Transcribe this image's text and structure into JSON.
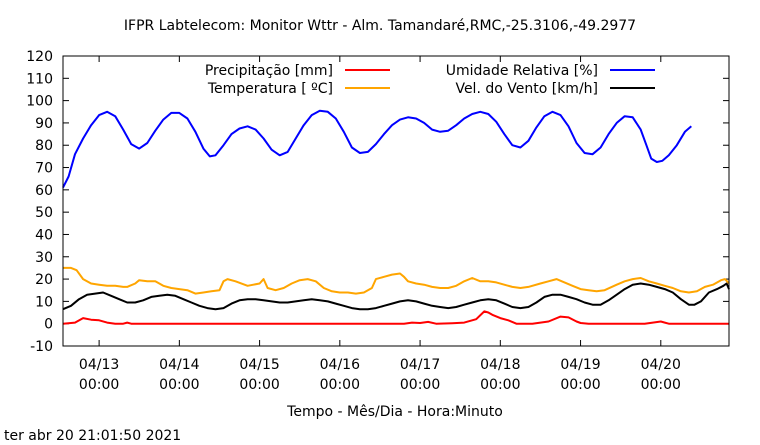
{
  "chart_data": {
    "type": "line",
    "title": "IFPR Labtelecom: Monitor Wttr - Alm. Tamandaré,RMC,-25.3106,-49.2977",
    "xlabel": "Tempo - Mês/Dia - Hora:Minuto",
    "ylabel": "",
    "ylim": [
      -10,
      120
    ],
    "yticks": [
      -10,
      0,
      10,
      20,
      30,
      40,
      50,
      60,
      70,
      80,
      90,
      100,
      110,
      120
    ],
    "xrange_days": [
      12.55,
      20.85
    ],
    "xticks": [
      {
        "day": 13,
        "date": "04/13",
        "time": "00:00"
      },
      {
        "day": 14,
        "date": "04/14",
        "time": "00:00"
      },
      {
        "day": 15,
        "date": "04/15",
        "time": "00:00"
      },
      {
        "day": 16,
        "date": "04/16",
        "time": "00:00"
      },
      {
        "day": 17,
        "date": "04/17",
        "time": "00:00"
      },
      {
        "day": 18,
        "date": "04/18",
        "time": "00:00"
      },
      {
        "day": 19,
        "date": "04/19",
        "time": "00:00"
      },
      {
        "day": 20,
        "date": "04/20",
        "time": "00:00"
      }
    ],
    "grid": false,
    "legend_placement": "top",
    "series": [
      {
        "name": "Precipitação [mm]",
        "color": "#ff0000",
        "points": [
          [
            12.55,
            0
          ],
          [
            12.7,
            0.5
          ],
          [
            12.8,
            2.5
          ],
          [
            12.9,
            1.8
          ],
          [
            13.0,
            1.5
          ],
          [
            13.1,
            0.5
          ],
          [
            13.2,
            0
          ],
          [
            13.3,
            0
          ],
          [
            13.35,
            0.5
          ],
          [
            13.4,
            0
          ],
          [
            14.0,
            0
          ],
          [
            15.0,
            0
          ],
          [
            16.0,
            0
          ],
          [
            16.8,
            0
          ],
          [
            16.9,
            0.5
          ],
          [
            17.0,
            0.3
          ],
          [
            17.1,
            0.8
          ],
          [
            17.2,
            0
          ],
          [
            17.4,
            0.2
          ],
          [
            17.55,
            0.5
          ],
          [
            17.7,
            2
          ],
          [
            17.8,
            5.5
          ],
          [
            17.85,
            5
          ],
          [
            17.9,
            4
          ],
          [
            18.0,
            2.5
          ],
          [
            18.1,
            1.5
          ],
          [
            18.2,
            0
          ],
          [
            18.4,
            0
          ],
          [
            18.5,
            0.5
          ],
          [
            18.6,
            1
          ],
          [
            18.75,
            3.2
          ],
          [
            18.85,
            2.8
          ],
          [
            18.95,
            1
          ],
          [
            19.0,
            0.3
          ],
          [
            19.1,
            0
          ],
          [
            19.8,
            0
          ],
          [
            19.9,
            0.5
          ],
          [
            20.0,
            1
          ],
          [
            20.05,
            0.5
          ],
          [
            20.1,
            0
          ],
          [
            20.85,
            0
          ]
        ]
      },
      {
        "name": "Temperatura [ ºC]",
        "color": "#ffa500",
        "points": [
          [
            12.55,
            25
          ],
          [
            12.65,
            25
          ],
          [
            12.72,
            24
          ],
          [
            12.8,
            20
          ],
          [
            12.9,
            18
          ],
          [
            13.0,
            17.5
          ],
          [
            13.1,
            17
          ],
          [
            13.2,
            17
          ],
          [
            13.3,
            16.5
          ],
          [
            13.35,
            16.5
          ],
          [
            13.45,
            18
          ],
          [
            13.5,
            19.5
          ],
          [
            13.6,
            19
          ],
          [
            13.7,
            19
          ],
          [
            13.8,
            17
          ],
          [
            13.9,
            16
          ],
          [
            14.0,
            15.5
          ],
          [
            14.1,
            15
          ],
          [
            14.2,
            13.5
          ],
          [
            14.3,
            14
          ],
          [
            14.4,
            14.5
          ],
          [
            14.5,
            15
          ],
          [
            14.55,
            19
          ],
          [
            14.6,
            20
          ],
          [
            14.7,
            19
          ],
          [
            14.85,
            17
          ],
          [
            15.0,
            18
          ],
          [
            15.05,
            20
          ],
          [
            15.1,
            16
          ],
          [
            15.2,
            15
          ],
          [
            15.3,
            16
          ],
          [
            15.4,
            18
          ],
          [
            15.5,
            19.5
          ],
          [
            15.6,
            20
          ],
          [
            15.7,
            19
          ],
          [
            15.8,
            16
          ],
          [
            15.9,
            14.5
          ],
          [
            16.0,
            14
          ],
          [
            16.1,
            14
          ],
          [
            16.2,
            13.5
          ],
          [
            16.3,
            14
          ],
          [
            16.4,
            16
          ],
          [
            16.45,
            20
          ],
          [
            16.55,
            21
          ],
          [
            16.65,
            22
          ],
          [
            16.75,
            22.5
          ],
          [
            16.8,
            21
          ],
          [
            16.85,
            19
          ],
          [
            16.95,
            18
          ],
          [
            17.05,
            17.5
          ],
          [
            17.15,
            16.5
          ],
          [
            17.25,
            16
          ],
          [
            17.35,
            16
          ],
          [
            17.45,
            17
          ],
          [
            17.55,
            19
          ],
          [
            17.65,
            20.5
          ],
          [
            17.75,
            19
          ],
          [
            17.85,
            19
          ],
          [
            17.95,
            18.5
          ],
          [
            18.05,
            17.5
          ],
          [
            18.15,
            16.5
          ],
          [
            18.25,
            16
          ],
          [
            18.35,
            16.5
          ],
          [
            18.5,
            18
          ],
          [
            18.6,
            19
          ],
          [
            18.7,
            20
          ],
          [
            18.8,
            18.5
          ],
          [
            18.9,
            17
          ],
          [
            19.0,
            15.5
          ],
          [
            19.1,
            15
          ],
          [
            19.2,
            14.5
          ],
          [
            19.3,
            15
          ],
          [
            19.45,
            17.5
          ],
          [
            19.55,
            19
          ],
          [
            19.65,
            20
          ],
          [
            19.75,
            20.5
          ],
          [
            19.85,
            19
          ],
          [
            19.95,
            18
          ],
          [
            20.05,
            17
          ],
          [
            20.15,
            16
          ],
          [
            20.25,
            14.5
          ],
          [
            20.35,
            14
          ],
          [
            20.45,
            14.5
          ],
          [
            20.55,
            16.5
          ],
          [
            20.65,
            17.5
          ],
          [
            20.75,
            19.5
          ],
          [
            20.8,
            20
          ],
          [
            20.85,
            18
          ]
        ]
      },
      {
        "name": "Umidade Relativa [%]",
        "color": "#0000ff",
        "points": [
          [
            12.55,
            61
          ],
          [
            12.62,
            66
          ],
          [
            12.7,
            76
          ],
          [
            12.8,
            83
          ],
          [
            12.9,
            89
          ],
          [
            13.0,
            93.5
          ],
          [
            13.1,
            95
          ],
          [
            13.2,
            93
          ],
          [
            13.3,
            87
          ],
          [
            13.4,
            80.5
          ],
          [
            13.5,
            78.5
          ],
          [
            13.6,
            81
          ],
          [
            13.7,
            86.5
          ],
          [
            13.8,
            91.5
          ],
          [
            13.9,
            94.5
          ],
          [
            14.0,
            94.5
          ],
          [
            14.1,
            92
          ],
          [
            14.2,
            86
          ],
          [
            14.3,
            78.5
          ],
          [
            14.38,
            75
          ],
          [
            14.45,
            75.5
          ],
          [
            14.55,
            80
          ],
          [
            14.65,
            85
          ],
          [
            14.75,
            87.5
          ],
          [
            14.85,
            88.5
          ],
          [
            14.95,
            87
          ],
          [
            15.05,
            83
          ],
          [
            15.15,
            78
          ],
          [
            15.25,
            75.5
          ],
          [
            15.35,
            77
          ],
          [
            15.45,
            83
          ],
          [
            15.55,
            89
          ],
          [
            15.65,
            93.5
          ],
          [
            15.75,
            95.5
          ],
          [
            15.85,
            95
          ],
          [
            15.95,
            92
          ],
          [
            16.05,
            86
          ],
          [
            16.15,
            79
          ],
          [
            16.25,
            76.5
          ],
          [
            16.35,
            77
          ],
          [
            16.45,
            80.5
          ],
          [
            16.55,
            85
          ],
          [
            16.65,
            89
          ],
          [
            16.75,
            91.5
          ],
          [
            16.85,
            92.5
          ],
          [
            16.95,
            92
          ],
          [
            17.05,
            90
          ],
          [
            17.15,
            87
          ],
          [
            17.25,
            86
          ],
          [
            17.35,
            86.5
          ],
          [
            17.45,
            89
          ],
          [
            17.55,
            92
          ],
          [
            17.65,
            94
          ],
          [
            17.75,
            95
          ],
          [
            17.85,
            94
          ],
          [
            17.95,
            90.5
          ],
          [
            18.05,
            85
          ],
          [
            18.15,
            80
          ],
          [
            18.25,
            79
          ],
          [
            18.35,
            82
          ],
          [
            18.45,
            88
          ],
          [
            18.55,
            93
          ],
          [
            18.65,
            95
          ],
          [
            18.75,
            93.5
          ],
          [
            18.85,
            88.5
          ],
          [
            18.95,
            81
          ],
          [
            19.05,
            76.5
          ],
          [
            19.15,
            76
          ],
          [
            19.25,
            79
          ],
          [
            19.35,
            85
          ],
          [
            19.45,
            90
          ],
          [
            19.55,
            93
          ],
          [
            19.65,
            92.5
          ],
          [
            19.75,
            87
          ],
          [
            19.82,
            80
          ],
          [
            19.88,
            74
          ],
          [
            19.95,
            72.5
          ],
          [
            20.02,
            73
          ],
          [
            20.1,
            75.5
          ],
          [
            20.2,
            80
          ],
          [
            20.3,
            86
          ],
          [
            20.38,
            88.5
          ]
        ]
      },
      {
        "name": "Vel. do Vento [km/h]",
        "color": "#000000",
        "points": [
          [
            12.55,
            6.5
          ],
          [
            12.65,
            8
          ],
          [
            12.75,
            11
          ],
          [
            12.85,
            13
          ],
          [
            12.95,
            13.5
          ],
          [
            13.05,
            14
          ],
          [
            13.15,
            12.5
          ],
          [
            13.25,
            11
          ],
          [
            13.35,
            9.5
          ],
          [
            13.45,
            9.5
          ],
          [
            13.55,
            10.5
          ],
          [
            13.65,
            12
          ],
          [
            13.75,
            12.5
          ],
          [
            13.85,
            13
          ],
          [
            13.95,
            12.5
          ],
          [
            14.05,
            11
          ],
          [
            14.15,
            9.5
          ],
          [
            14.25,
            8
          ],
          [
            14.35,
            7
          ],
          [
            14.45,
            6.5
          ],
          [
            14.55,
            7
          ],
          [
            14.65,
            9
          ],
          [
            14.75,
            10.5
          ],
          [
            14.85,
            11
          ],
          [
            14.95,
            11
          ],
          [
            15.05,
            10.5
          ],
          [
            15.15,
            10
          ],
          [
            15.25,
            9.5
          ],
          [
            15.35,
            9.5
          ],
          [
            15.45,
            10
          ],
          [
            15.55,
            10.5
          ],
          [
            15.65,
            11
          ],
          [
            15.75,
            10.5
          ],
          [
            15.85,
            10
          ],
          [
            15.95,
            9
          ],
          [
            16.05,
            8
          ],
          [
            16.15,
            7
          ],
          [
            16.25,
            6.5
          ],
          [
            16.35,
            6.5
          ],
          [
            16.45,
            7
          ],
          [
            16.55,
            8
          ],
          [
            16.65,
            9
          ],
          [
            16.75,
            10
          ],
          [
            16.85,
            10.5
          ],
          [
            16.95,
            10
          ],
          [
            17.05,
            9
          ],
          [
            17.15,
            8
          ],
          [
            17.25,
            7.5
          ],
          [
            17.35,
            7
          ],
          [
            17.45,
            7.5
          ],
          [
            17.55,
            8.5
          ],
          [
            17.65,
            9.5
          ],
          [
            17.75,
            10.5
          ],
          [
            17.85,
            11
          ],
          [
            17.95,
            10.5
          ],
          [
            18.05,
            9
          ],
          [
            18.15,
            7.5
          ],
          [
            18.25,
            7
          ],
          [
            18.35,
            7.5
          ],
          [
            18.45,
            9.5
          ],
          [
            18.55,
            12
          ],
          [
            18.65,
            13
          ],
          [
            18.75,
            13
          ],
          [
            18.85,
            12
          ],
          [
            18.95,
            11
          ],
          [
            19.05,
            9.5
          ],
          [
            19.15,
            8.5
          ],
          [
            19.25,
            8.5
          ],
          [
            19.35,
            10.5
          ],
          [
            19.45,
            13
          ],
          [
            19.55,
            15.5
          ],
          [
            19.65,
            17.5
          ],
          [
            19.75,
            18
          ],
          [
            19.85,
            17.5
          ],
          [
            19.95,
            16.5
          ],
          [
            20.05,
            15.5
          ],
          [
            20.15,
            14
          ],
          [
            20.25,
            11
          ],
          [
            20.35,
            8.5
          ],
          [
            20.42,
            8.5
          ],
          [
            20.5,
            10
          ],
          [
            20.6,
            14
          ],
          [
            20.7,
            15.5
          ],
          [
            20.78,
            17
          ],
          [
            20.82,
            18
          ],
          [
            20.85,
            15.5
          ]
        ]
      }
    ]
  },
  "timestamp": "ter abr 20 21:01:50 2021"
}
